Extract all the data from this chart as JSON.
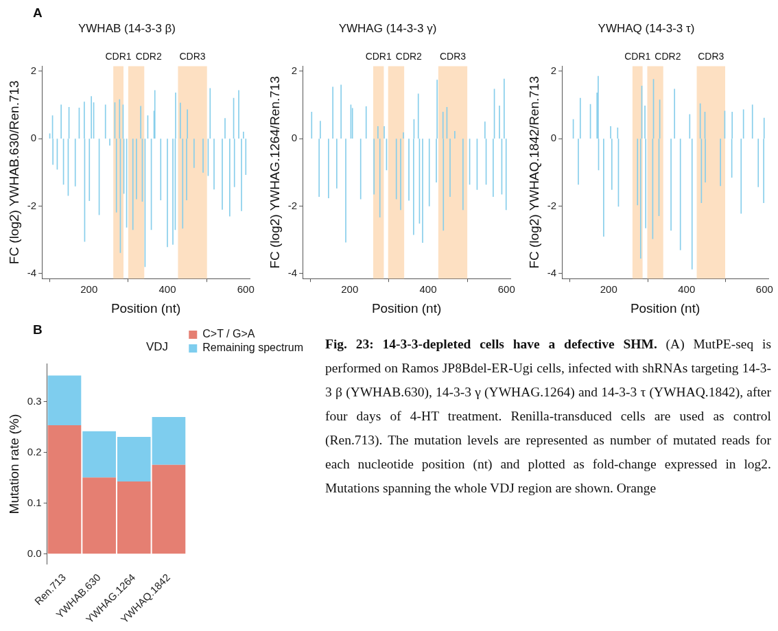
{
  "chart_data": [
    {
      "type": "bar",
      "title": "YWHAB (14-3-3 β)",
      "xlabel": "Position (nt)",
      "ylabel": "FC (log2) YWHAB.630/Ren.713",
      "annotations": [
        "A"
      ],
      "x": [
        100,
        107,
        108,
        119,
        129,
        135,
        147,
        149,
        165,
        175,
        188,
        189,
        201,
        206,
        212,
        226,
        242,
        253,
        266,
        270,
        278,
        280,
        287,
        289,
        296,
        312,
        321,
        332,
        336,
        343,
        350,
        359,
        366,
        368,
        383,
        400,
        414,
        420,
        421,
        433,
        439,
        449,
        451,
        468,
        491,
        504,
        509,
        519,
        540,
        547,
        559,
        569,
        571,
        582,
        589,
        594,
        600
      ],
      "series": [
        {
          "color": "#87ceeb",
          "values": [
            0.15,
            0.68,
            -0.77,
            -0.91,
            1.0,
            -1.36,
            -1.69,
            0.93,
            -1.41,
            0.91,
            1.09,
            -3.05,
            -1.84,
            1.25,
            1.07,
            -2.26,
            1.0,
            -0.2,
            1.07,
            -2.18,
            1.16,
            -3.38,
            1.0,
            -1.63,
            -2.63,
            -2.7,
            -1.79,
            0.96,
            -1.86,
            -3.8,
            0.68,
            -2.7,
            0.82,
            1.43,
            -1.82,
            -3.21,
            -3.14,
            -2.7,
            1.36,
            1.06,
            -2.66,
            -1.82,
            0.86,
            -0.86,
            -1.0,
            -1.1,
            1.49,
            -1.5,
            -2.1,
            0.6,
            -2.3,
            1.2,
            -1.43,
            1.43,
            -2.14,
            0.2,
            -1.07
          ]
        }
      ],
      "xlim": [
        80,
        610
      ],
      "xticks": [
        200,
        400,
        600
      ],
      "ylim": [
        -4.15,
        2.15
      ],
      "yticks": [
        -4,
        -2,
        0,
        2
      ],
      "bands": [
        {
          "axis": "x",
          "from": 262,
          "to": 288,
          "label": "CDR1",
          "color": "#fde0c2"
        },
        {
          "axis": "x",
          "from": 300,
          "to": 341,
          "label": "CDR2",
          "color": "#fde0c2"
        },
        {
          "axis": "x",
          "from": 427,
          "to": 501,
          "label": "CDR3",
          "color": "#fde0c2"
        }
      ]
    },
    {
      "type": "bar",
      "title": "YWHAG (14-3-3 γ)",
      "xlabel": "Position (nt)",
      "ylabel": "FC (log2) YWHAG.1264/Ren.713",
      "x": [
        103,
        122,
        125,
        146,
        157,
        167,
        178,
        190,
        203,
        207,
        228,
        242,
        262,
        272,
        277,
        288,
        294,
        319,
        330,
        337,
        351,
        363,
        364,
        375,
        378,
        386,
        403,
        421,
        423,
        438,
        439,
        448,
        456,
        468,
        489,
        506,
        525,
        545,
        548,
        566,
        569,
        582,
        588,
        594,
        599
      ],
      "series": [
        {
          "color": "#87ceeb",
          "values": [
            0.79,
            -1.72,
            0.52,
            -1.76,
            1.53,
            -1.47,
            1.59,
            -3.07,
            1.0,
            0.9,
            -1.79,
            0.95,
            -1.65,
            0.36,
            -2.33,
            0.36,
            -0.93,
            -1.79,
            -2.11,
            0.18,
            -1.83,
            -2.85,
            0.57,
            1.33,
            -2.51,
            -3.08,
            -2.0,
            -1.29,
            1.74,
            0.79,
            -2.72,
            0.93,
            -1.72,
            0.22,
            -2.11,
            -1.36,
            -1.51,
            0.5,
            -1.36,
            -1.72,
            1.47,
            0.97,
            -1.65,
            1.77,
            -2.11
          ]
        }
      ],
      "xlim": [
        80,
        610
      ],
      "xticks": [
        200,
        400,
        600
      ],
      "ylim": [
        -4.15,
        2.15
      ],
      "yticks": [
        -4,
        -2,
        0,
        2
      ],
      "bands": [
        {
          "axis": "x",
          "from": 260,
          "to": 287,
          "label": "CDR1",
          "color": "#fde0c2"
        },
        {
          "axis": "x",
          "from": 298,
          "to": 339,
          "label": "CDR2",
          "color": "#fde0c2"
        },
        {
          "axis": "x",
          "from": 426,
          "to": 500,
          "label": "CDR3",
          "color": "#fde0c2"
        }
      ]
    },
    {
      "type": "bar",
      "title": "YWHAQ (14-3-3 τ)",
      "xlabel": "Position (nt)",
      "ylabel": "FC (log2) YWHAQ.1842/Ren.713",
      "x": [
        109,
        122,
        127,
        153,
        170,
        173,
        174,
        187,
        205,
        208,
        223,
        225,
        274,
        282,
        285,
        293,
        295,
        313,
        315,
        329,
        331,
        360,
        369,
        384,
        408,
        414,
        435,
        438,
        447,
        448,
        487,
        498,
        516,
        517,
        540,
        546,
        569,
        584,
        598,
        599
      ],
      "series": [
        {
          "color": "#87ceeb",
          "values": [
            0.57,
            -1.36,
            1.2,
            1.02,
            1.36,
            1.85,
            -0.93,
            -2.9,
            0.36,
            -1.51,
            0.32,
            -2.01,
            -1.97,
            -3.55,
            1.56,
            0.97,
            -2.65,
            -2.97,
            1.76,
            -2.29,
            1.15,
            -2.72,
            1.47,
            -3.3,
            0.72,
            -3.87,
            1.04,
            -1.9,
            0.79,
            -1.29,
            -1.4,
            0.82,
            -1.15,
            0.79,
            -2.22,
            0.86,
            1.0,
            -1.43,
            -1.9,
            0.61
          ]
        }
      ],
      "xlim": [
        80,
        610
      ],
      "xticks": [
        200,
        400,
        600
      ],
      "ylim": [
        -4.15,
        2.15
      ],
      "yticks": [
        -4,
        -2,
        0,
        2
      ],
      "bands": [
        {
          "axis": "x",
          "from": 261,
          "to": 287,
          "label": "CDR1",
          "color": "#fde0c2"
        },
        {
          "axis": "x",
          "from": 299,
          "to": 340,
          "label": "CDR2",
          "color": "#fde0c2"
        },
        {
          "axis": "x",
          "from": 426,
          "to": 499,
          "label": "CDR3",
          "color": "#fde0c2"
        }
      ]
    },
    {
      "type": "bar",
      "title": "VDJ",
      "ylabel": "Mutation rate (%)",
      "annotations": [
        "B"
      ],
      "stacked": true,
      "legend": "top right",
      "categories": [
        "Ren.713",
        "YWHAB.630",
        "YWHAG.1264",
        "YWHAQ.1842"
      ],
      "series": [
        {
          "name": "C>T / G>A",
          "color": "#e57f72",
          "values": [
            0.254,
            0.151,
            0.143,
            0.176
          ]
        },
        {
          "name": "Remaining spectrum",
          "color": "#7ecdee",
          "values": [
            0.098,
            0.091,
            0.088,
            0.094
          ]
        }
      ],
      "ylim": [
        -0.02,
        0.375
      ],
      "yticks": [
        {
          "value": 0,
          "label": "0.0"
        },
        0.1,
        0.2,
        0.3
      ]
    },
    {
      "type": "other",
      "title": "Fig. 23: 14-3-3-depleted cells have a defective SHM.",
      "annotations": [
        "(A) MutPE-seq is performed on Ramos JP8Bdel-ER-Ugi cells, infected with shRNAs targeting 14-3-3 β (YWHAB.630), 14-3-3 γ (YWHAG.1264) and 14-3-3 τ (YWHAQ.1842), after four days of 4-HT treatment. Renilla-transduced cells are used as control (Ren.713). The mutation levels are represented as number of mutated reads for each nucleotide position (nt) and plotted as fold-change expressed in log2. Mutations spanning the whole VDJ region are shown. Orange"
      ]
    }
  ]
}
